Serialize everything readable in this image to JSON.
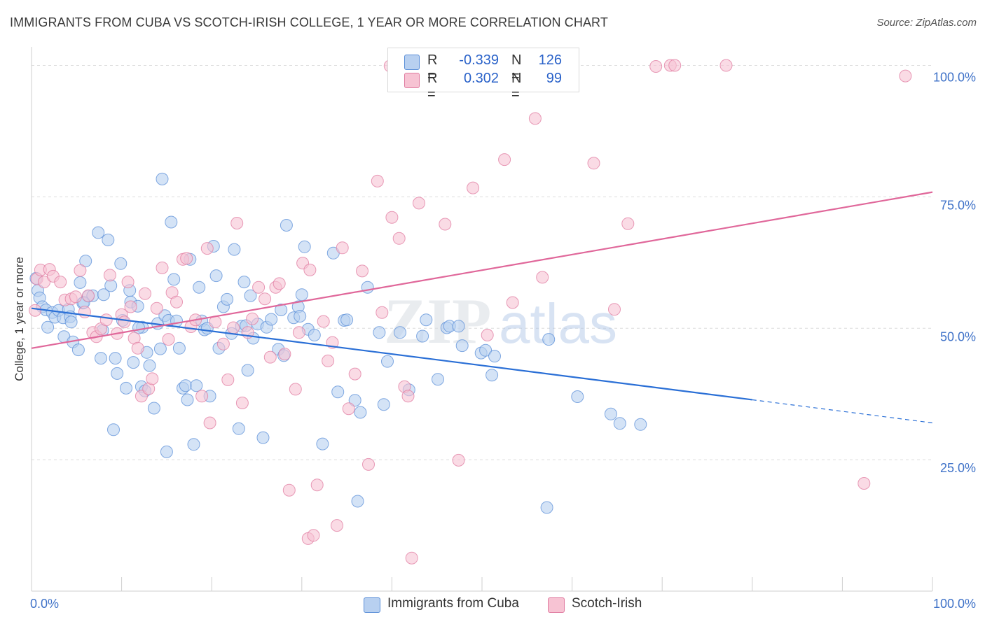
{
  "title": "IMMIGRANTS FROM CUBA VS SCOTCH-IRISH COLLEGE, 1 YEAR OR MORE CORRELATION CHART",
  "source": "Source: ZipAtlas.com",
  "watermark": {
    "zip": "ZIP",
    "atlas": "atlas"
  },
  "stats": [
    {
      "r_label": "R =",
      "r_value": "-0.339",
      "n_label": "N =",
      "n_value": "126",
      "color": "#5b8fd8",
      "fill": "#b8d0f0"
    },
    {
      "r_label": "R =",
      "r_value": "0.302",
      "n_label": "N =",
      "n_value": "99",
      "color": "#e07ba0",
      "fill": "#f7c3d3"
    }
  ],
  "legend": [
    {
      "name": "Immigrants from Cuba",
      "fill": "#b8d0f0",
      "stroke": "#5b8fd8"
    },
    {
      "name": "Scotch-Irish",
      "fill": "#f7c3d3",
      "stroke": "#e07ba0"
    }
  ],
  "chart_data": {
    "type": "scatter",
    "title": "IMMIGRANTS FROM CUBA VS SCOTCH-IRISH COLLEGE, 1 YEAR OR MORE CORRELATION CHART",
    "xlabel": "",
    "ylabel": "College, 1 year or more",
    "xlim": [
      0,
      100
    ],
    "ylim": [
      0,
      103
    ],
    "x_tick_labels": [
      "0.0%",
      "100.0%"
    ],
    "y_ticks": [
      25,
      50,
      75,
      100
    ],
    "y_tick_labels": [
      "25.0%",
      "50.0%",
      "75.0%",
      "100.0%"
    ],
    "grid": "horizontal dashed",
    "legend_position": "bottom",
    "series": [
      {
        "name": "Immigrants from Cuba",
        "color": "#5b8fd8",
        "fill": "#b8d0f0",
        "trend": {
          "x0": 0,
          "y0": 53.8,
          "x1": 80,
          "y1": 36.4,
          "dashed_to": 100,
          "dashed_y": 32.0
        },
        "points": [
          [
            0.5,
            59.5
          ],
          [
            0.7,
            57.2
          ],
          [
            0.9,
            55.8
          ],
          [
            1.2,
            54.1
          ],
          [
            1.6,
            53.5
          ],
          [
            1.8,
            50.2
          ],
          [
            2.3,
            53.0
          ],
          [
            2.6,
            52.1
          ],
          [
            3.0,
            53.4
          ],
          [
            3.5,
            52.0
          ],
          [
            3.6,
            48.4
          ],
          [
            4.1,
            53.6
          ],
          [
            4.3,
            52.2
          ],
          [
            4.4,
            51.2
          ],
          [
            4.6,
            47.4
          ],
          [
            5.2,
            45.9
          ],
          [
            5.4,
            58.7
          ],
          [
            5.7,
            54.8
          ],
          [
            6.0,
            62.8
          ],
          [
            6.3,
            56.1
          ],
          [
            6.8,
            56.2
          ],
          [
            7.4,
            68.2
          ],
          [
            7.7,
            44.3
          ],
          [
            7.9,
            49.6
          ],
          [
            8.0,
            56.4
          ],
          [
            8.5,
            66.8
          ],
          [
            8.8,
            58.1
          ],
          [
            9.1,
            30.7
          ],
          [
            9.3,
            44.3
          ],
          [
            9.5,
            41.4
          ],
          [
            9.9,
            62.3
          ],
          [
            10.1,
            51.5
          ],
          [
            10.5,
            38.6
          ],
          [
            10.9,
            57.2
          ],
          [
            11.0,
            55.0
          ],
          [
            11.3,
            43.5
          ],
          [
            11.8,
            54.2
          ],
          [
            12.2,
            38.9
          ],
          [
            12.3,
            50.2
          ],
          [
            12.6,
            38.1
          ],
          [
            12.8,
            45.4
          ],
          [
            13.1,
            42.9
          ],
          [
            13.6,
            34.8
          ],
          [
            14.0,
            50.9
          ],
          [
            14.3,
            46.1
          ],
          [
            14.5,
            78.4
          ],
          [
            14.8,
            52.4
          ],
          [
            15.0,
            26.5
          ],
          [
            15.2,
            51.5
          ],
          [
            15.5,
            70.2
          ],
          [
            15.8,
            59.3
          ],
          [
            16.1,
            51.4
          ],
          [
            16.4,
            46.2
          ],
          [
            16.8,
            38.6
          ],
          [
            17.1,
            39.1
          ],
          [
            17.3,
            36.4
          ],
          [
            17.6,
            63.1
          ],
          [
            18.0,
            27.9
          ],
          [
            18.3,
            39.1
          ],
          [
            18.6,
            57.8
          ],
          [
            18.9,
            51.4
          ],
          [
            19.2,
            49.7
          ],
          [
            19.5,
            50.0
          ],
          [
            19.8,
            37.1
          ],
          [
            20.2,
            65.6
          ],
          [
            20.5,
            60.0
          ],
          [
            20.8,
            46.2
          ],
          [
            21.3,
            54.1
          ],
          [
            21.7,
            55.5
          ],
          [
            22.2,
            49.0
          ],
          [
            22.5,
            65.0
          ],
          [
            23.0,
            30.9
          ],
          [
            23.3,
            50.4
          ],
          [
            23.6,
            58.8
          ],
          [
            24.0,
            42.0
          ],
          [
            24.3,
            56.2
          ],
          [
            24.6,
            48.1
          ],
          [
            25.1,
            50.8
          ],
          [
            25.7,
            29.2
          ],
          [
            26.1,
            50.2
          ],
          [
            26.6,
            51.7
          ],
          [
            27.4,
            46.0
          ],
          [
            27.7,
            53.5
          ],
          [
            28.0,
            44.8
          ],
          [
            28.3,
            69.6
          ],
          [
            29.1,
            52.0
          ],
          [
            29.6,
            54.1
          ],
          [
            30.0,
            56.4
          ],
          [
            30.3,
            65.5
          ],
          [
            30.7,
            49.8
          ],
          [
            31.4,
            48.7
          ],
          [
            32.3,
            28.0
          ],
          [
            33.5,
            64.3
          ],
          [
            34.0,
            37.9
          ],
          [
            34.7,
            51.5
          ],
          [
            35.0,
            51.6
          ],
          [
            35.9,
            36.3
          ],
          [
            36.2,
            17.1
          ],
          [
            36.5,
            34.0
          ],
          [
            37.3,
            57.8
          ],
          [
            38.6,
            49.2
          ],
          [
            39.1,
            35.5
          ],
          [
            39.5,
            43.7
          ],
          [
            40.9,
            49.2
          ],
          [
            41.9,
            38.3
          ],
          [
            43.4,
            48.5
          ],
          [
            43.8,
            51.6
          ],
          [
            45.1,
            40.3
          ],
          [
            46.1,
            50.1
          ],
          [
            46.4,
            50.4
          ],
          [
            47.4,
            50.4
          ],
          [
            47.8,
            46.7
          ],
          [
            49.9,
            45.3
          ],
          [
            50.4,
            45.8
          ],
          [
            51.1,
            41.1
          ],
          [
            51.4,
            44.7
          ],
          [
            57.2,
            15.9
          ],
          [
            57.4,
            47.9
          ],
          [
            60.6,
            37.0
          ],
          [
            64.3,
            33.7
          ],
          [
            65.3,
            31.9
          ],
          [
            67.6,
            31.7
          ],
          [
            29.8,
            52.3
          ],
          [
            5.8,
            54.9
          ],
          [
            23.8,
            50.5
          ],
          [
            11.9,
            50.1
          ]
        ]
      },
      {
        "name": "Scotch-Irish",
        "color": "#e07ba0",
        "fill": "#f7c3d3",
        "trend": {
          "x0": 0,
          "y0": 46.2,
          "x1": 100,
          "y1": 75.9
        },
        "points": [
          [
            0.4,
            53.4
          ],
          [
            0.6,
            59.4
          ],
          [
            1.0,
            61.1
          ],
          [
            1.4,
            58.8
          ],
          [
            2.0,
            61.2
          ],
          [
            2.4,
            59.9
          ],
          [
            3.2,
            58.8
          ],
          [
            3.7,
            55.4
          ],
          [
            4.4,
            55.6
          ],
          [
            4.9,
            56.0
          ],
          [
            5.4,
            61.0
          ],
          [
            5.9,
            53.1
          ],
          [
            6.3,
            56.2
          ],
          [
            6.8,
            49.2
          ],
          [
            7.2,
            48.4
          ],
          [
            7.7,
            49.9
          ],
          [
            8.3,
            51.6
          ],
          [
            8.7,
            60.1
          ],
          [
            9.5,
            49.0
          ],
          [
            10.0,
            52.6
          ],
          [
            10.3,
            51.2
          ],
          [
            10.7,
            58.8
          ],
          [
            11.0,
            54.1
          ],
          [
            11.4,
            48.1
          ],
          [
            11.8,
            46.2
          ],
          [
            12.2,
            37.1
          ],
          [
            12.6,
            56.6
          ],
          [
            13.0,
            38.5
          ],
          [
            13.4,
            40.4
          ],
          [
            13.9,
            53.8
          ],
          [
            14.5,
            61.5
          ],
          [
            15.2,
            47.9
          ],
          [
            15.6,
            56.8
          ],
          [
            16.1,
            55.0
          ],
          [
            16.8,
            63.1
          ],
          [
            17.2,
            63.3
          ],
          [
            17.7,
            50.3
          ],
          [
            18.2,
            51.6
          ],
          [
            18.9,
            37.1
          ],
          [
            19.5,
            65.2
          ],
          [
            19.8,
            32.0
          ],
          [
            20.4,
            51.2
          ],
          [
            21.3,
            47.0
          ],
          [
            21.8,
            40.2
          ],
          [
            22.4,
            50.1
          ],
          [
            22.8,
            70.0
          ],
          [
            23.4,
            35.8
          ],
          [
            24.0,
            49.2
          ],
          [
            24.5,
            51.8
          ],
          [
            25.2,
            57.8
          ],
          [
            25.9,
            55.6
          ],
          [
            26.5,
            44.5
          ],
          [
            27.1,
            57.8
          ],
          [
            27.5,
            58.5
          ],
          [
            28.1,
            45.1
          ],
          [
            28.6,
            19.2
          ],
          [
            29.3,
            38.4
          ],
          [
            29.7,
            49.2
          ],
          [
            30.1,
            62.4
          ],
          [
            30.7,
            10.0
          ],
          [
            31.3,
            10.6
          ],
          [
            31.7,
            20.2
          ],
          [
            32.4,
            51.3
          ],
          [
            32.9,
            43.8
          ],
          [
            33.4,
            47.3
          ],
          [
            33.9,
            12.5
          ],
          [
            34.5,
            65.3
          ],
          [
            35.2,
            34.7
          ],
          [
            35.9,
            41.3
          ],
          [
            36.7,
            60.9
          ],
          [
            37.4,
            24.1
          ],
          [
            38.4,
            78.0
          ],
          [
            38.9,
            53.0
          ],
          [
            40.0,
            71.1
          ],
          [
            40.8,
            67.1
          ],
          [
            41.4,
            38.9
          ],
          [
            41.8,
            37.1
          ],
          [
            42.2,
            6.3
          ],
          [
            43.0,
            73.8
          ],
          [
            45.9,
            69.8
          ],
          [
            47.4,
            24.9
          ],
          [
            49.0,
            76.7
          ],
          [
            50.6,
            48.7
          ],
          [
            52.5,
            82.1
          ],
          [
            53.4,
            54.9
          ],
          [
            55.9,
            89.9
          ],
          [
            56.7,
            59.7
          ],
          [
            62.4,
            81.4
          ],
          [
            64.7,
            53.6
          ],
          [
            66.2,
            69.9
          ],
          [
            69.3,
            99.8
          ],
          [
            70.9,
            100.0
          ],
          [
            71.4,
            100.0
          ],
          [
            77.1,
            100.0
          ],
          [
            92.4,
            20.5
          ],
          [
            97.0,
            98.0
          ],
          [
            42.4,
            100.0
          ],
          [
            39.8,
            99.9
          ],
          [
            30.9,
            61.1
          ]
        ]
      }
    ]
  }
}
